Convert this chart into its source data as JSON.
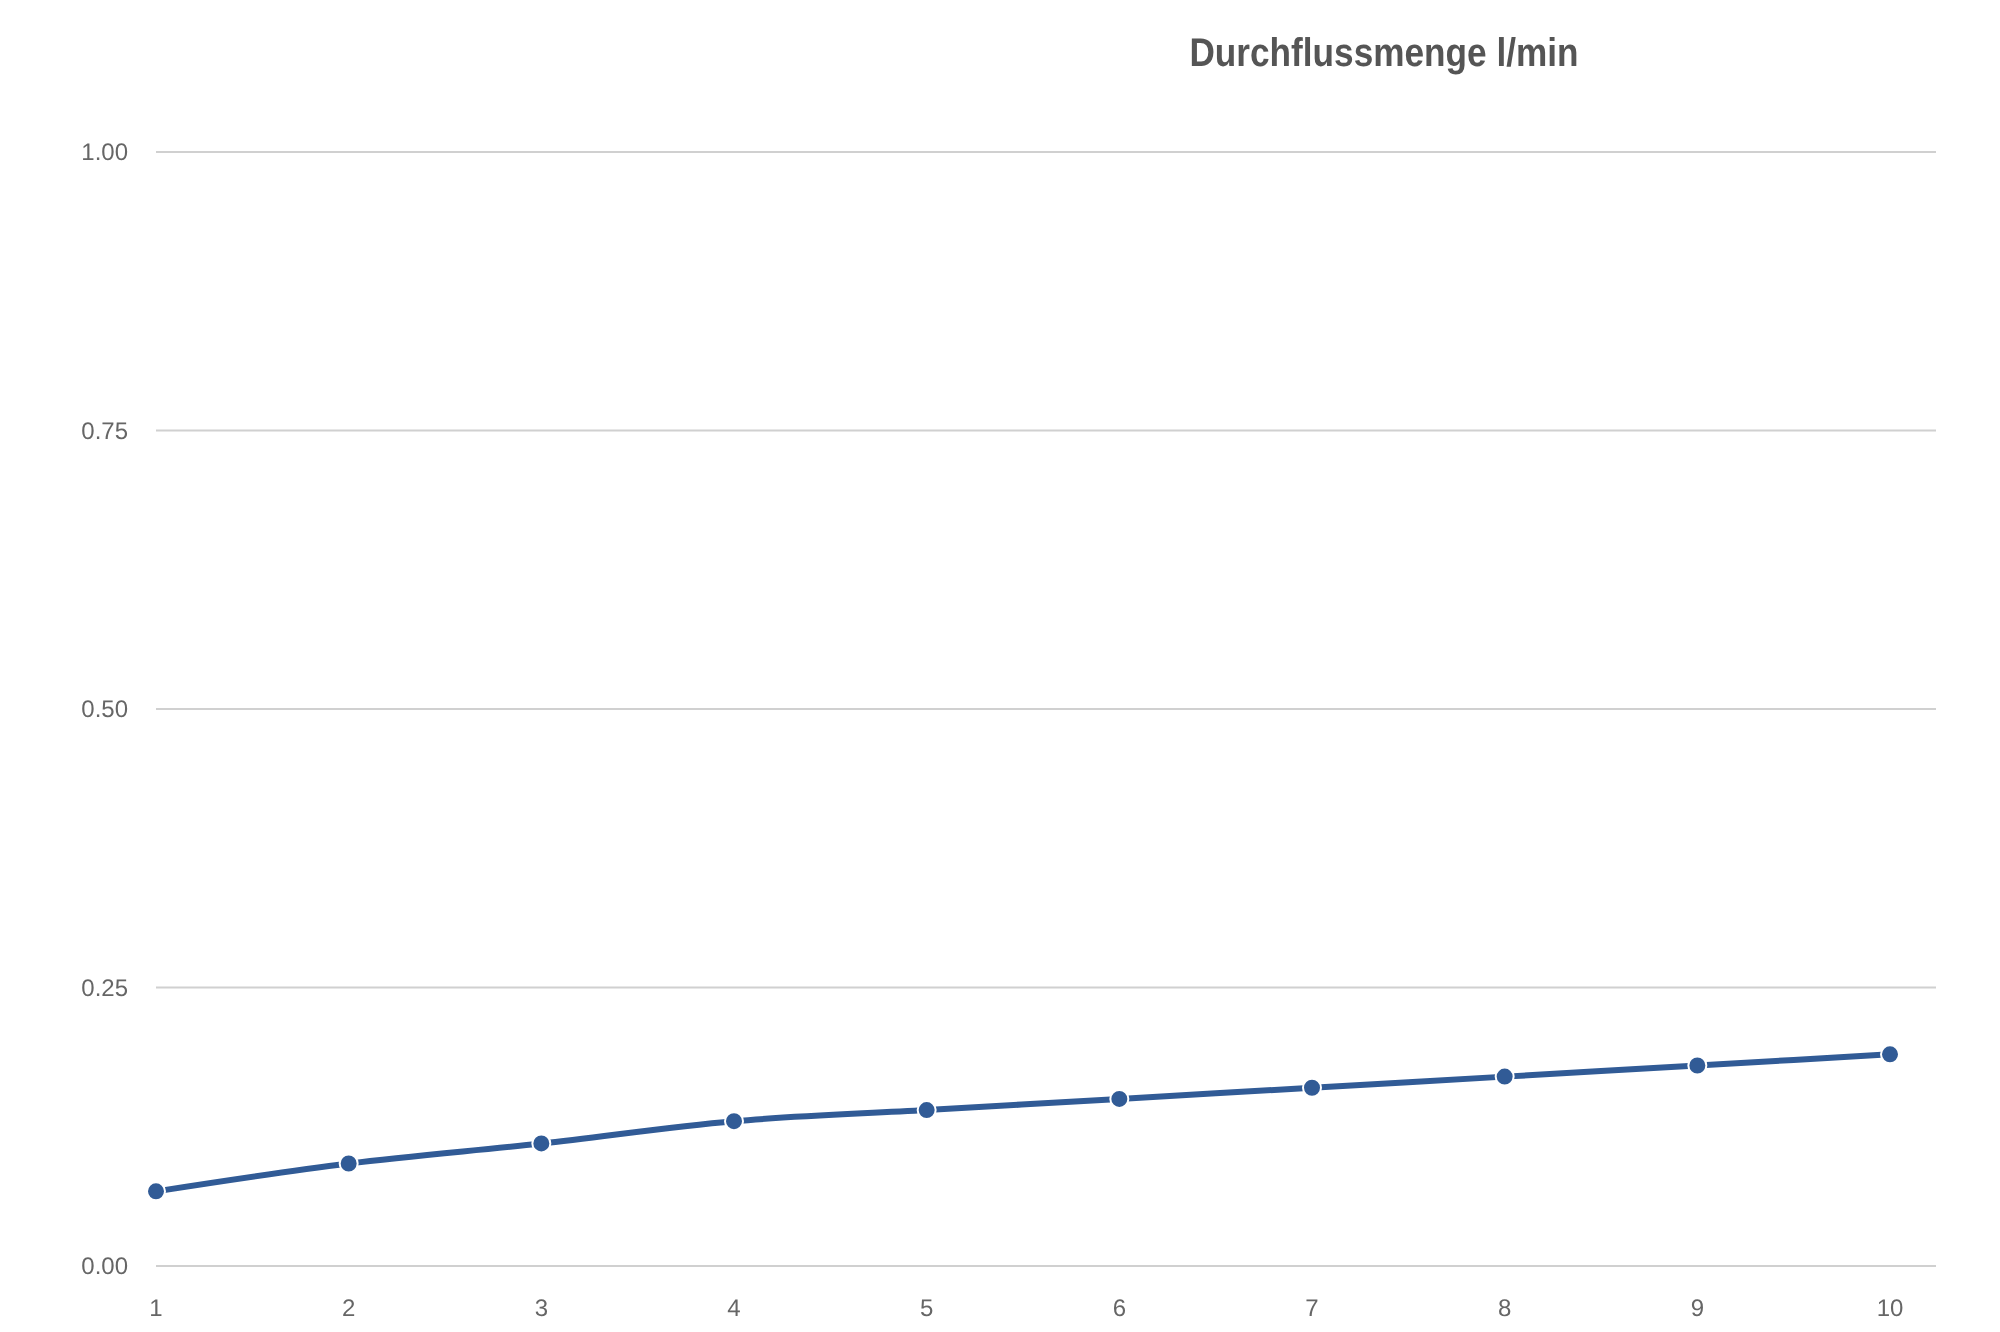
{
  "chart_data": {
    "type": "line",
    "title": "Durchflussmenge l/min",
    "categories": [
      "1",
      "2",
      "3",
      "4",
      "5",
      "6",
      "7",
      "8",
      "9",
      "10"
    ],
    "series": [
      {
        "color": "#315b96",
        "values": [
          0.067,
          0.092,
          0.11,
          0.13,
          0.14,
          0.15,
          0.16,
          0.17,
          0.18,
          0.19
        ]
      }
    ],
    "ylim": [
      0,
      1
    ],
    "yticks": [
      {
        "value": 0,
        "label": "0.00"
      },
      {
        "value": 0.25,
        "label": "0.25"
      },
      {
        "value": 0.5,
        "label": "0.50"
      },
      {
        "value": 0.75,
        "label": "0.75"
      },
      {
        "value": 1,
        "label": "1.00"
      }
    ],
    "grid": "y",
    "marker": "circle",
    "line_style": "solid"
  }
}
